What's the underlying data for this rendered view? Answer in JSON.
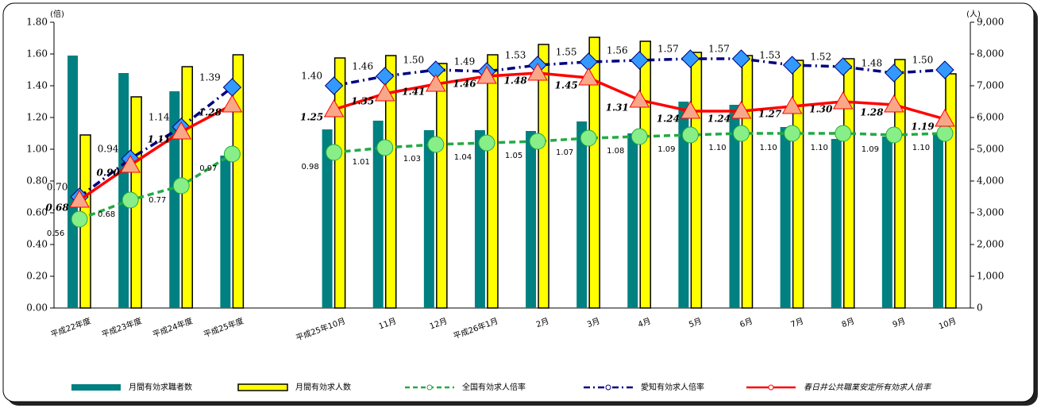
{
  "chart_data": {
    "type": "bar_line",
    "y_axis_label": "(倍)",
    "y2_axis_label": "(人)",
    "categories": [
      "平成22年度",
      "平成23年度",
      "平成24年度",
      "平成25年度",
      null,
      "平成25年10月",
      "11月",
      "12月",
      "平成26年1月",
      "2月",
      "3月",
      "4月",
      "5月",
      "6月",
      "7月",
      "8月",
      "9月",
      "10月"
    ],
    "ylim": [
      0,
      1.8
    ],
    "yticks": [
      {
        "value": 0,
        "label": "0.00"
      },
      {
        "value": 0.2,
        "label": "0.20"
      },
      {
        "value": 0.4,
        "label": "0.40"
      },
      {
        "value": 0.6,
        "label": "0.60"
      },
      {
        "value": 0.8,
        "label": "0.80"
      },
      {
        "value": 1,
        "label": "1.00"
      },
      {
        "value": 1.2,
        "label": "1.20"
      },
      {
        "value": 1.4,
        "label": "1.40"
      },
      {
        "value": 1.6,
        "label": "1.60"
      },
      {
        "value": 1.8,
        "label": "1.80"
      }
    ],
    "y2lim": [
      0,
      9000
    ],
    "y2ticks": [
      0,
      {
        "value": 1000,
        "label": "1,000"
      },
      {
        "value": 2000,
        "label": "2,000"
      },
      {
        "value": 3000,
        "label": "3,000"
      },
      {
        "value": 4000,
        "label": "4,000"
      },
      {
        "value": 5000,
        "label": "5,000"
      },
      {
        "value": 6000,
        "label": "6,000"
      },
      {
        "value": 7000,
        "label": "7,000"
      },
      {
        "value": 8000,
        "label": "8,000"
      },
      {
        "value": 9000,
        "label": "9,000"
      }
    ],
    "grid": false,
    "legend": "bottom",
    "series": [
      {
        "name": "月間有効求職者数",
        "type": "bar",
        "axis": "y2",
        "color": "#008080",
        "values": [
          7950,
          7400,
          6825,
          4800,
          null,
          5625,
          5900,
          5600,
          5600,
          5575,
          5875,
          5500,
          6500,
          6400,
          5700,
          5325,
          5400,
          5500
        ]
      },
      {
        "name": "月間有効求人数",
        "type": "bar",
        "axis": "y2",
        "color": "#ffff00",
        "values": [
          5450,
          6650,
          7600,
          7975,
          null,
          7875,
          7950,
          7700,
          7975,
          8300,
          8525,
          8400,
          8050,
          7950,
          7800,
          7850,
          7825,
          7375
        ]
      },
      {
        "name": "全国有効求人倍率",
        "type": "line",
        "color": "#22aa44",
        "line_style": "dashed",
        "marker": "circle",
        "values": [
          0.56,
          0.68,
          0.77,
          0.97,
          null,
          0.98,
          1.01,
          1.03,
          1.04,
          1.05,
          1.07,
          1.08,
          1.09,
          1.1,
          1.1,
          1.1,
          1.09,
          1.1
        ],
        "value_labels": [
          "0.56",
          "0.68",
          "0.77",
          "0.97",
          null,
          "0.98",
          "1.01",
          "1.03",
          "1.04",
          "1.05",
          "1.07",
          "1.08",
          "1.09",
          "1.10",
          "1.10",
          "1.10",
          "1.09",
          "1.10"
        ]
      },
      {
        "name": "愛知有効求人倍率",
        "type": "line",
        "color": "#000080",
        "line_style": "dashdot",
        "marker": "diamond",
        "values": [
          0.7,
          0.94,
          1.14,
          1.39,
          null,
          1.4,
          1.46,
          1.5,
          1.49,
          1.53,
          1.55,
          1.56,
          1.57,
          1.57,
          1.53,
          1.52,
          1.48,
          1.5
        ],
        "value_labels": [
          "0.70",
          "0.94",
          "1.14",
          "1.39",
          null,
          "1.40",
          "1.46",
          "1.50",
          "1.49",
          "1.53",
          "1.55",
          "1.56",
          "1.57",
          "1.57",
          "1.53",
          "1.52",
          "1.48",
          "1.50"
        ]
      },
      {
        "name": "春日井公共職業安定所有効求人倍率",
        "type": "line",
        "color": "#ff0000",
        "line_style": "solid",
        "marker": "triangle",
        "values": [
          0.68,
          0.9,
          1.11,
          1.28,
          null,
          1.25,
          1.35,
          1.41,
          1.46,
          1.48,
          1.45,
          1.31,
          1.24,
          1.24,
          1.27,
          1.3,
          1.28,
          1.19
        ],
        "value_labels": [
          "0.68",
          "0.90",
          "1.11",
          "1.28",
          null,
          "1.25",
          "1.35",
          "1.41",
          "1.46",
          "1.48",
          "1.45",
          "1.31",
          "1.24",
          "1.24",
          "1.27",
          "1.30",
          "1.28",
          "1.19"
        ]
      }
    ]
  }
}
